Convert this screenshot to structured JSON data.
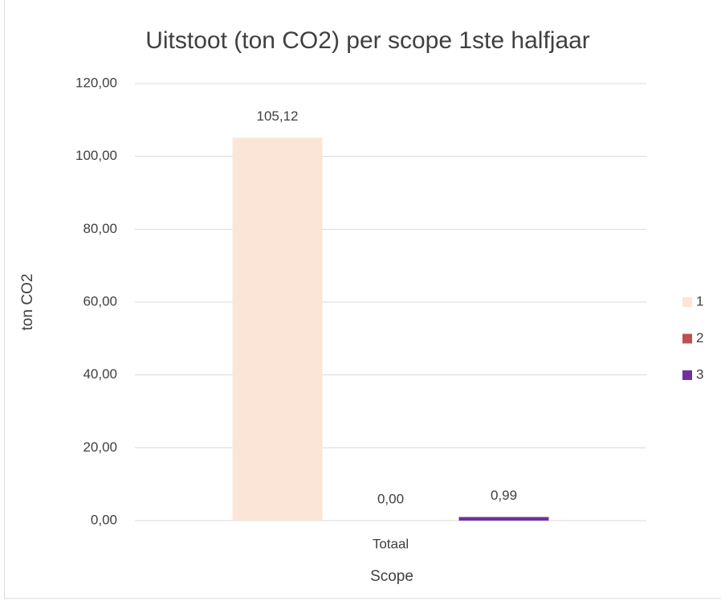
{
  "chart_data": {
    "type": "bar",
    "title": "Uitstoot (ton CO2) per scope 1ste halfjaar",
    "x_label": "Scope",
    "y_label": "ton CO2",
    "categories": [
      "Totaal"
    ],
    "series": [
      {
        "name": "1",
        "color": "#fbe5d6",
        "values": [
          105.12
        ],
        "value_labels": [
          "105,12"
        ]
      },
      {
        "name": "2",
        "color": "#c0504d",
        "values": [
          0
        ],
        "value_labels": [
          "0,00"
        ]
      },
      {
        "name": "3",
        "color": "#7030a0",
        "values": [
          0.99
        ],
        "value_labels": [
          "0,99"
        ]
      }
    ],
    "ylim": [
      0,
      120
    ],
    "yticks": [
      {
        "value": 0,
        "label": "0,00"
      },
      {
        "value": 20,
        "label": "20,00"
      },
      {
        "value": 40,
        "label": "40,00"
      },
      {
        "value": 60,
        "label": "60,00"
      },
      {
        "value": 80,
        "label": "80,00"
      },
      {
        "value": 100,
        "label": "100,00"
      },
      {
        "value": 120,
        "label": "120,00"
      }
    ],
    "grid": true,
    "legend": "right"
  }
}
